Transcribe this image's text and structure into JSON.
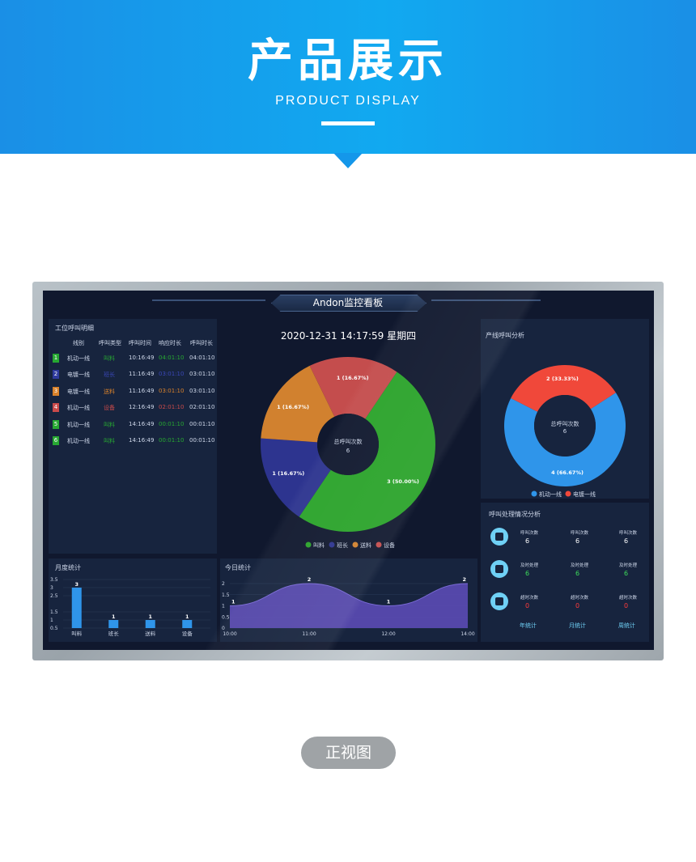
{
  "header": {
    "title": "产品展示",
    "subtitle": "PRODUCT DISPLAY"
  },
  "screen": {
    "title": "Andon监控看板",
    "datetime": "2020-12-31   14:17:59   星期四"
  },
  "call_detail": {
    "title": "工位呼叫明细",
    "headers": [
      "线别",
      "呼叫类型",
      "呼叫时间",
      "响应时长",
      "呼叫时长"
    ],
    "rows": [
      {
        "no": "1",
        "line": "机动一线",
        "type": "叫料",
        "time": "10:16:49",
        "resp": "04:01:10",
        "dur": "04:01:10",
        "color": "#27a832"
      },
      {
        "no": "2",
        "line": "电镀一线",
        "type": "班长",
        "time": "11:16:49",
        "resp": "03:01:10",
        "dur": "03:01:10",
        "color": "#2e3a9e"
      },
      {
        "no": "3",
        "line": "电镀一线",
        "type": "送料",
        "time": "11:16:49",
        "resp": "03:01:10",
        "dur": "03:01:10",
        "color": "#d9822b"
      },
      {
        "no": "4",
        "line": "机动一线",
        "type": "设备",
        "time": "12:16:49",
        "resp": "02:01:10",
        "dur": "02:01:10",
        "color": "#c94a4a"
      },
      {
        "no": "5",
        "line": "机动一线",
        "type": "叫料",
        "time": "14:16:49",
        "resp": "00:01:10",
        "dur": "00:01:10",
        "color": "#27a832"
      },
      {
        "no": "6",
        "line": "机动一线",
        "type": "叫料",
        "time": "14:16:49",
        "resp": "00:01:10",
        "dur": "00:01:10",
        "color": "#27a832"
      }
    ]
  },
  "center_pie": {
    "center_label": "总呼叫次数",
    "center_value": "6",
    "slices": [
      {
        "name": "叫料",
        "value": 3,
        "label": "3 (50.00%)",
        "color": "#2aa32a"
      },
      {
        "name": "班长",
        "value": 1,
        "label": "1 (16.67%)",
        "color": "#2d348f"
      },
      {
        "name": "送料",
        "value": 1,
        "label": "1 (16.67%)",
        "color": "#d1812f"
      },
      {
        "name": "设备",
        "value": 1,
        "label": "1 (16.67%)",
        "color": "#c44d4d"
      }
    ]
  },
  "line_pie": {
    "title": "产线呼叫分析",
    "center_label": "总呼叫次数",
    "center_value": "6",
    "slices": [
      {
        "name": "机动一线",
        "value": 4,
        "label": "4 (66.67%)",
        "color": "#2f95ea"
      },
      {
        "name": "电镀一线",
        "value": 2,
        "label": "2 (33.33%)",
        "color": "#f0483a"
      }
    ]
  },
  "call_handling": {
    "title": "呼叫处理情况分析",
    "rows": [
      {
        "label": "呼叫次数",
        "values": [
          "6",
          "6",
          "6"
        ],
        "color": "#ffffff"
      },
      {
        "label": "及时处理",
        "values": [
          "6",
          "6",
          "6"
        ],
        "color": "#3ddc5a"
      },
      {
        "label": "超时次数",
        "values": [
          "0",
          "0",
          "0"
        ],
        "color": "#ff3b3b"
      }
    ],
    "footer": [
      "年统计",
      "月统计",
      "周统计"
    ]
  },
  "chart_data": [
    {
      "type": "bar",
      "title": "月度统计",
      "categories": [
        "叫料",
        "班长",
        "送料",
        "设备"
      ],
      "values": [
        3,
        1,
        1,
        1
      ],
      "ylim": [
        0.5,
        3.5
      ],
      "yticks": [
        "3.5",
        "3",
        "2.5",
        "1.5",
        "1",
        "0.5"
      ]
    },
    {
      "type": "area",
      "title": "今日统计",
      "x": [
        "10:00",
        "11:00",
        "12:00",
        "14:00"
      ],
      "values": [
        1,
        2,
        1,
        2
      ],
      "ylim": [
        0,
        2
      ],
      "yticks": [
        "2",
        "1.5",
        "1",
        "0.5",
        "0"
      ]
    }
  ],
  "caption": "正视图",
  "colors": {
    "banner": "#13a0ee",
    "screen_bg": "#10182e",
    "panel_bg": "#17243e"
  }
}
